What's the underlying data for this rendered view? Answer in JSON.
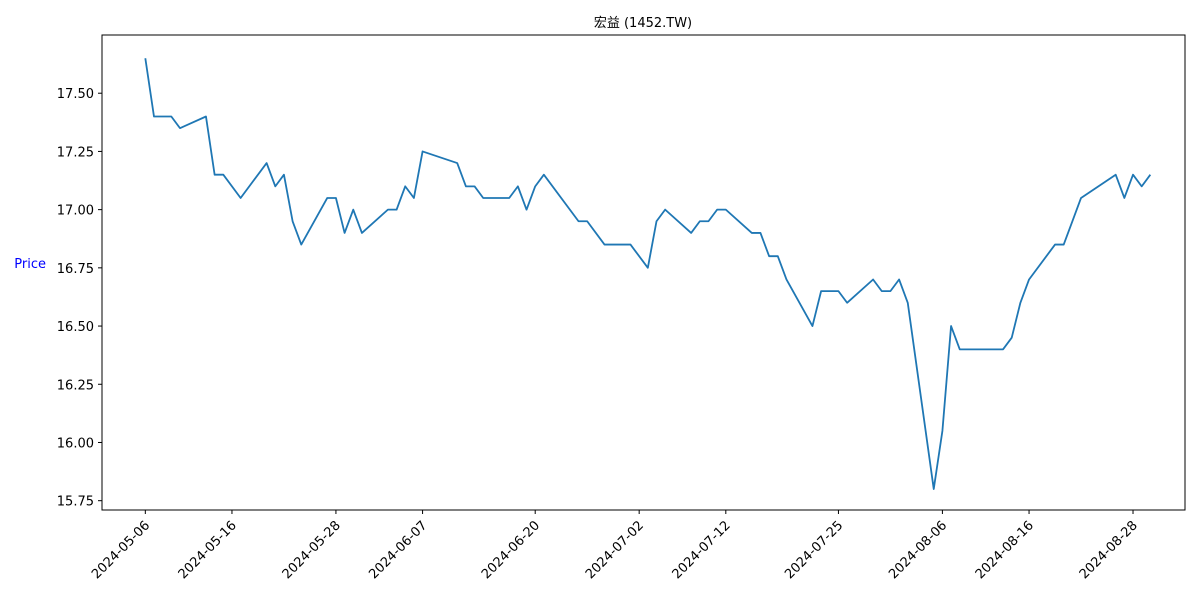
{
  "chart_data": {
    "type": "line",
    "title": "宏益 (1452.TW)",
    "xlabel": "",
    "ylabel": "Price",
    "ylim": [
      15.71,
      17.75
    ],
    "xlim": [
      "2024-05-01",
      "2024-09-03"
    ],
    "yticks": [
      "15.75",
      "16.00",
      "16.25",
      "16.50",
      "16.75",
      "17.00",
      "17.25",
      "17.50"
    ],
    "xticks": [
      "2024-05-06",
      "2024-05-16",
      "2024-05-28",
      "2024-06-07",
      "2024-06-20",
      "2024-07-02",
      "2024-07-12",
      "2024-07-25",
      "2024-08-06",
      "2024-08-16",
      "2024-08-28"
    ],
    "grid": false,
    "legend": "none",
    "line_color": "#1f77b4",
    "series": [
      {
        "x": [
          "2024-05-06",
          "2024-05-07",
          "2024-05-08",
          "2024-05-09",
          "2024-05-10",
          "2024-05-13",
          "2024-05-14",
          "2024-05-15",
          "2024-05-17",
          "2024-05-20",
          "2024-05-21",
          "2024-05-22",
          "2024-05-23",
          "2024-05-24",
          "2024-05-27",
          "2024-05-28",
          "2024-05-29",
          "2024-05-30",
          "2024-05-31",
          "2024-06-03",
          "2024-06-04",
          "2024-06-05",
          "2024-06-06",
          "2024-06-07",
          "2024-06-11",
          "2024-06-12",
          "2024-06-13",
          "2024-06-14",
          "2024-06-17",
          "2024-06-18",
          "2024-06-19",
          "2024-06-20",
          "2024-06-21",
          "2024-06-25",
          "2024-06-26",
          "2024-06-28",
          "2024-07-01",
          "2024-07-03",
          "2024-07-04",
          "2024-07-05",
          "2024-07-08",
          "2024-07-09",
          "2024-07-10",
          "2024-07-11",
          "2024-07-12",
          "2024-07-15",
          "2024-07-16",
          "2024-07-17",
          "2024-07-18",
          "2024-07-19",
          "2024-07-22",
          "2024-07-23",
          "2024-07-25",
          "2024-07-26",
          "2024-07-29",
          "2024-07-30",
          "2024-07-31",
          "2024-08-01",
          "2024-08-02",
          "2024-08-05",
          "2024-08-06",
          "2024-08-07",
          "2024-08-08",
          "2024-08-13",
          "2024-08-14",
          "2024-08-15",
          "2024-08-16",
          "2024-08-19",
          "2024-08-20",
          "2024-08-21",
          "2024-08-22",
          "2024-08-26",
          "2024-08-27",
          "2024-08-28",
          "2024-08-29",
          "2024-08-30"
        ],
        "y": [
          17.65,
          17.4,
          17.4,
          17.4,
          17.35,
          17.4,
          17.15,
          17.15,
          17.05,
          17.2,
          17.1,
          17.15,
          16.95,
          16.85,
          17.05,
          17.05,
          16.9,
          17.0,
          16.9,
          17.0,
          17.0,
          17.1,
          17.05,
          17.25,
          17.2,
          17.1,
          17.1,
          17.05,
          17.05,
          17.1,
          17.0,
          17.1,
          17.15,
          16.95,
          16.95,
          16.85,
          16.85,
          16.75,
          16.95,
          17.0,
          16.9,
          16.95,
          16.95,
          17.0,
          17.0,
          16.9,
          16.9,
          16.8,
          16.8,
          16.7,
          16.5,
          16.65,
          16.65,
          16.6,
          16.7,
          16.65,
          16.65,
          16.7,
          16.6,
          15.8,
          16.05,
          16.5,
          16.4,
          16.4,
          16.45,
          16.6,
          16.7,
          16.85,
          16.85,
          16.95,
          17.05,
          17.15,
          17.05,
          17.15,
          17.1,
          17.15
        ]
      }
    ]
  }
}
